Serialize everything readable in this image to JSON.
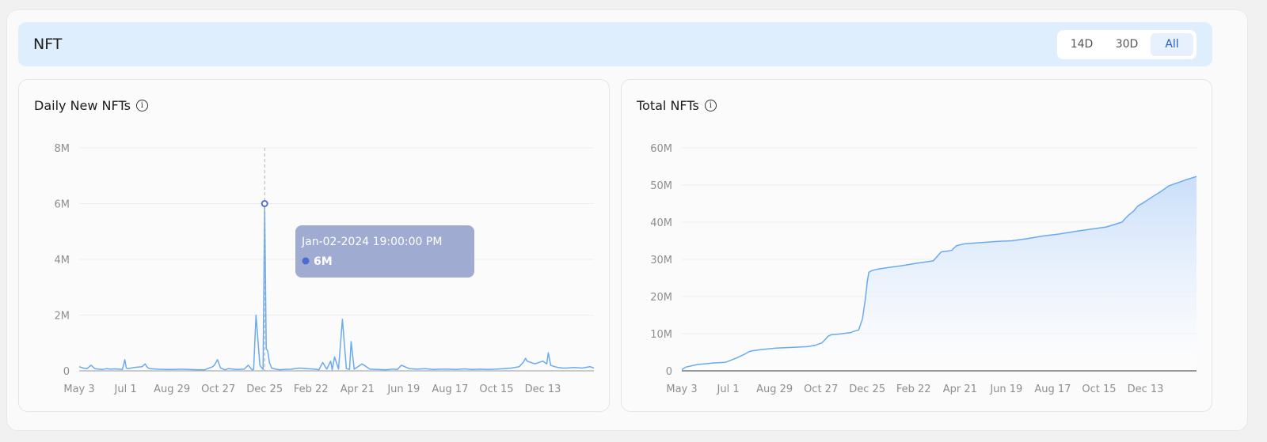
{
  "section_title": "NFT",
  "range": {
    "options": [
      "14D",
      "30D",
      "All"
    ],
    "active": "All"
  },
  "charts": {
    "daily": {
      "title": "Daily New NFTs",
      "info_icon": "info-icon"
    },
    "total": {
      "title": "Total NFTs",
      "info_icon": "info-icon"
    }
  },
  "tooltip": {
    "date": "Jan-02-2024 19:00:00 PM",
    "value": "6M"
  },
  "colors": {
    "line": "#6aaaf0",
    "area_top": "#c9defa",
    "tooltip_bg": "#9aa6cd",
    "tooltip_dot": "#4b6bd1"
  },
  "chart_data": [
    {
      "type": "line",
      "title": "Daily New NFTs",
      "x_tick_labels": [
        "May 3",
        "Jul 1",
        "Aug 29",
        "Oct 27",
        "Dec 25",
        "Feb 22",
        "Apr 21",
        "Jun 19",
        "Aug 17",
        "Oct 15",
        "Dec 13"
      ],
      "y_tick_labels": [
        "0",
        "2M",
        "4M",
        "6M",
        "8M"
      ],
      "ylim": [
        0,
        8000000
      ],
      "xlim_days": [
        0,
        655
      ],
      "grid": true,
      "series": [
        {
          "x_days": [
            0,
            5,
            10,
            15,
            20,
            25,
            30,
            35,
            40,
            45,
            50,
            55,
            58,
            60,
            62,
            70,
            80,
            84,
            86,
            88,
            90,
            100,
            110,
            120,
            130,
            140,
            150,
            160,
            170,
            172,
            174,
            176,
            178,
            180,
            182,
            184,
            186,
            190,
            200,
            210,
            215,
            220,
            222,
            225,
            230,
            234,
            236,
            238,
            240,
            242,
            245,
            250,
            255,
            260,
            270,
            280,
            290,
            300,
            305,
            310,
            315,
            320,
            322,
            325,
            330,
            335,
            340,
            344,
            346,
            350,
            360,
            370,
            380,
            390,
            395,
            396,
            397,
            400,
            405,
            410,
            420,
            430,
            440,
            450,
            460,
            470,
            480,
            490,
            500,
            510,
            520,
            530,
            540,
            550,
            560,
            565,
            568,
            570,
            575,
            580,
            585,
            590,
            595,
            597,
            600,
            605,
            610,
            615,
            620,
            630,
            640,
            650,
            655
          ],
          "y": [
            150000,
            100000,
            80000,
            200000,
            80000,
            60000,
            50000,
            80000,
            60000,
            70000,
            60000,
            50000,
            400000,
            100000,
            80000,
            120000,
            150000,
            250000,
            150000,
            100000,
            80000,
            60000,
            50000,
            50000,
            60000,
            50000,
            40000,
            40000,
            150000,
            200000,
            300000,
            400000,
            250000,
            100000,
            80000,
            50000,
            40000,
            80000,
            50000,
            60000,
            200000,
            40000,
            50000,
            2000000,
            200000,
            50000,
            6000000,
            800000,
            700000,
            300000,
            100000,
            60000,
            40000,
            50000,
            60000,
            100000,
            80000,
            60000,
            40000,
            300000,
            60000,
            350000,
            40000,
            500000,
            60000,
            1850000,
            80000,
            50000,
            1050000,
            60000,
            250000,
            60000,
            50000,
            40000,
            50000,
            50000,
            60000,
            60000,
            50000,
            200000,
            80000,
            60000,
            80000,
            50000,
            60000,
            60000,
            50000,
            70000,
            50000,
            60000,
            50000,
            60000,
            80000,
            100000,
            150000,
            300000,
            450000,
            350000,
            300000,
            250000,
            300000,
            350000,
            250000,
            650000,
            200000,
            150000,
            120000,
            100000,
            100000,
            120000,
            100000,
            150000,
            100000
          ]
        }
      ]
    },
    {
      "type": "area",
      "title": "Total NFTs",
      "x_tick_labels": [
        "May 3",
        "Jul 1",
        "Aug 29",
        "Oct 27",
        "Dec 25",
        "Feb 22",
        "Apr 21",
        "Jun 19",
        "Aug 17",
        "Oct 15",
        "Dec 13"
      ],
      "y_tick_labels": [
        "0",
        "10M",
        "20M",
        "30M",
        "40M",
        "50M",
        "60M"
      ],
      "ylim": [
        0,
        60000000
      ],
      "xlim_days": [
        0,
        655
      ],
      "grid": true,
      "series": [
        {
          "x_days": [
            0,
            5,
            20,
            40,
            55,
            58,
            70,
            80,
            86,
            90,
            100,
            120,
            140,
            160,
            170,
            178,
            182,
            186,
            190,
            200,
            215,
            220,
            225,
            230,
            234,
            236,
            238,
            242,
            246,
            250,
            260,
            280,
            300,
            320,
            330,
            340,
            344,
            346,
            350,
            360,
            380,
            400,
            420,
            440,
            460,
            480,
            500,
            520,
            540,
            560,
            568,
            575,
            580,
            590,
            600,
            610,
            620,
            640,
            655
          ],
          "y": [
            300000,
            1000000,
            1700000,
            2100000,
            2300000,
            2500000,
            3500000,
            4500000,
            5200000,
            5400000,
            5700000,
            6100000,
            6300000,
            6500000,
            6900000,
            7500000,
            8300000,
            9300000,
            9700000,
            9900000,
            10300000,
            10700000,
            11000000,
            14000000,
            20000000,
            24000000,
            26500000,
            27000000,
            27200000,
            27400000,
            27700000,
            28300000,
            29000000,
            29600000,
            32000000,
            32300000,
            32500000,
            33000000,
            33700000,
            34200000,
            34500000,
            34800000,
            35000000,
            35600000,
            36300000,
            36800000,
            37500000,
            38100000,
            38700000,
            40000000,
            41800000,
            43000000,
            44300000,
            45600000,
            47000000,
            48300000,
            49800000,
            51300000,
            52300000
          ]
        }
      ]
    }
  ]
}
